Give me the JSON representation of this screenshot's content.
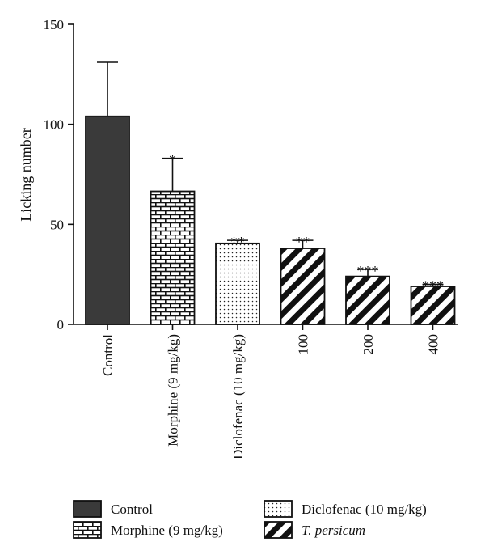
{
  "chart_data": {
    "type": "bar",
    "title": "",
    "xlabel": "",
    "ylabel": "Licking number",
    "ylim": [
      0,
      150
    ],
    "yticks": [
      0,
      50,
      100,
      150
    ],
    "categories": [
      "Control",
      "Morphine (9 mg/kg)",
      "Diclofenac (10 mg/kg)",
      "100",
      "200",
      "400"
    ],
    "values": [
      104,
      66.5,
      40.5,
      38,
      24,
      19
    ],
    "errors": [
      27,
      16.5,
      1.5,
      4,
      3.5,
      1
    ],
    "significance": [
      "",
      "*",
      "**",
      "**",
      "***",
      "***"
    ],
    "patterns": [
      "solid",
      "brick",
      "dots",
      "diag",
      "diag",
      "diag"
    ],
    "grid": false,
    "legend_position": "bottom",
    "colors": {
      "solid": "#3a3a3a",
      "stroke": "#111111",
      "background": "#ffffff"
    }
  },
  "legend": [
    {
      "label": "Control",
      "pattern": "solid",
      "italic": false
    },
    {
      "label": "Diclofenac (10 mg/kg)",
      "pattern": "dots",
      "italic": false
    },
    {
      "label": "Morphine (9 mg/kg)",
      "pattern": "brick",
      "italic": false
    },
    {
      "label": "T. persicum",
      "pattern": "diag",
      "italic": true
    }
  ]
}
